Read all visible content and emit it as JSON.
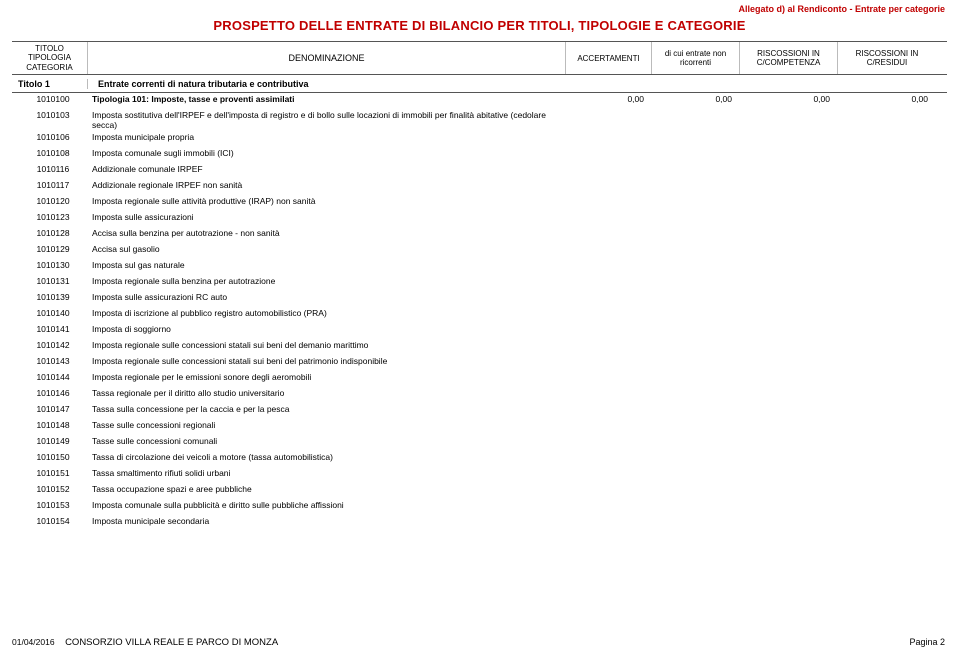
{
  "allegato": "Allegato d) al Rendiconto - Entrate per categorie",
  "title": "PROSPETTO DELLE ENTRATE DI BILANCIO PER TITOLI, TIPOLOGIE E CATEGORIE",
  "header": {
    "col_code_l1": "TITOLO",
    "col_code_l2": "TIPOLOGIA",
    "col_code_l3": "CATEGORIA",
    "col_denom": "DENOMINAZIONE",
    "col_acc": "ACCERTAMENTI",
    "col_ent_l1": "di cui entrate non",
    "col_ent_l2": "ricorrenti",
    "col_r1_l1": "RISCOSSIONI IN",
    "col_r1_l2": "C/COMPETENZA",
    "col_r2_l1": "RISCOSSIONI IN",
    "col_r2_l2": "C/RESIDUI"
  },
  "section": {
    "code": "Titolo  1",
    "text": "Entrate correnti di natura tributaria e contributiva"
  },
  "rows": [
    {
      "code": "1010100",
      "desc": "Tipologia 101: Imposte, tasse e proventi assimilati",
      "bold": true,
      "v1": "0,00",
      "v2": "0,00",
      "v3": "0,00",
      "v4": "0,00"
    },
    {
      "code": "1010103",
      "desc": "Imposta sostitutiva dell'IRPEF e dell'imposta di registro e di bollo sulle locazioni di immobili per finalità abitative (cedolare secca)"
    },
    {
      "code": "1010106",
      "desc": "Imposta municipale propria"
    },
    {
      "code": "1010108",
      "desc": "Imposta comunale sugli immobili (ICI)"
    },
    {
      "code": "1010116",
      "desc": "Addizionale comunale IRPEF"
    },
    {
      "code": "1010117",
      "desc": "Addizionale regionale IRPEF non sanità"
    },
    {
      "code": "1010120",
      "desc": "Imposta regionale sulle attività produttive (IRAP) non sanità"
    },
    {
      "code": "1010123",
      "desc": "Imposta sulle assicurazioni"
    },
    {
      "code": "1010128",
      "desc": "Accisa sulla benzina per autotrazione - non sanità"
    },
    {
      "code": "1010129",
      "desc": "Accisa sul gasolio"
    },
    {
      "code": "1010130",
      "desc": "Imposta sul gas naturale"
    },
    {
      "code": "1010131",
      "desc": "Imposta regionale sulla benzina per autotrazione"
    },
    {
      "code": "1010139",
      "desc": "Imposta sulle assicurazioni RC auto"
    },
    {
      "code": "1010140",
      "desc": "Imposta di iscrizione al pubblico registro automobilistico (PRA)"
    },
    {
      "code": "1010141",
      "desc": "Imposta di soggiorno"
    },
    {
      "code": "1010142",
      "desc": "Imposta regionale sulle concessioni statali sui beni del demanio marittimo"
    },
    {
      "code": "1010143",
      "desc": "Imposta regionale sulle concessioni statali sui beni del patrimonio indisponibile"
    },
    {
      "code": "1010144",
      "desc": "Imposta regionale per le emissioni sonore degli aeromobili"
    },
    {
      "code": "1010146",
      "desc": "Tassa regionale per il diritto allo studio universitario"
    },
    {
      "code": "1010147",
      "desc": "Tassa sulla concessione per la caccia e per la pesca"
    },
    {
      "code": "1010148",
      "desc": "Tasse sulle concessioni regionali"
    },
    {
      "code": "1010149",
      "desc": "Tasse sulle concessioni comunali"
    },
    {
      "code": "1010150",
      "desc": "Tassa di circolazione dei veicoli a motore (tassa automobilistica)"
    },
    {
      "code": "1010151",
      "desc": "Tassa smaltimento rifiuti solidi urbani"
    },
    {
      "code": "1010152",
      "desc": "Tassa occupazione spazi e aree pubbliche"
    },
    {
      "code": "1010153",
      "desc": "Imposta comunale sulla pubblicità e diritto sulle pubbliche affissioni"
    },
    {
      "code": "1010154",
      "desc": "Imposta municipale secondaria"
    }
  ],
  "footer": {
    "date": "01/04/2016",
    "org": "CONSORZIO VILLA REALE E PARCO DI MONZA",
    "page": "Pagina 2"
  },
  "colors": {
    "accent": "#c00000",
    "border": "#555555",
    "sub_border": "#bbbbbb",
    "background": "#ffffff",
    "text": "#000000"
  }
}
